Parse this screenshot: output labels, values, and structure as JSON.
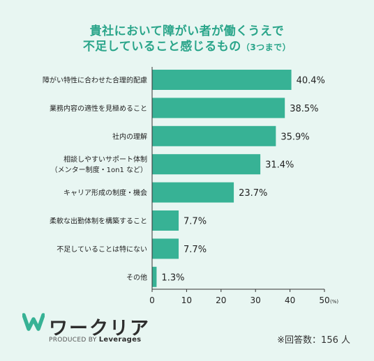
{
  "title_line1": "貴社において障がい者が働くうえで",
  "title_line2": "不足していること感じるもの",
  "title_note": "（3つまで）",
  "logo_name": "ワークリア",
  "produced_by_prefix": "PRODUCED BY",
  "produced_by_brand": "Leverages",
  "respondents": "※回答数：156 人",
  "colors": {
    "bar": "#37b295",
    "title": "#2aa58a",
    "background": "#e8f6f2"
  },
  "chart_data": {
    "type": "bar",
    "orientation": "horizontal",
    "categories": [
      [
        "障がい特性に合わせた合理的配慮"
      ],
      [
        "業務内容の適性を見極めること"
      ],
      [
        "社内の理解"
      ],
      [
        "相談しやすいサポート体制",
        "（メンター制度・1on1 など）"
      ],
      [
        "キャリア形成の制度・機会"
      ],
      [
        "柔軟な出勤体制を構築すること"
      ],
      [
        "不足していることは特にない"
      ],
      [
        "その他"
      ]
    ],
    "values": [
      40.4,
      38.5,
      35.9,
      31.4,
      23.7,
      7.7,
      7.7,
      1.3
    ],
    "value_labels": [
      "40.4%",
      "38.5%",
      "35.9%",
      "31.4%",
      "23.7%",
      "7.7%",
      "7.7%",
      "1.3%"
    ],
    "xlim": [
      0,
      50
    ],
    "xticks": [
      "0",
      "10",
      "20",
      "30",
      "40",
      "50"
    ],
    "x_unit": "(%)",
    "grid": false
  }
}
